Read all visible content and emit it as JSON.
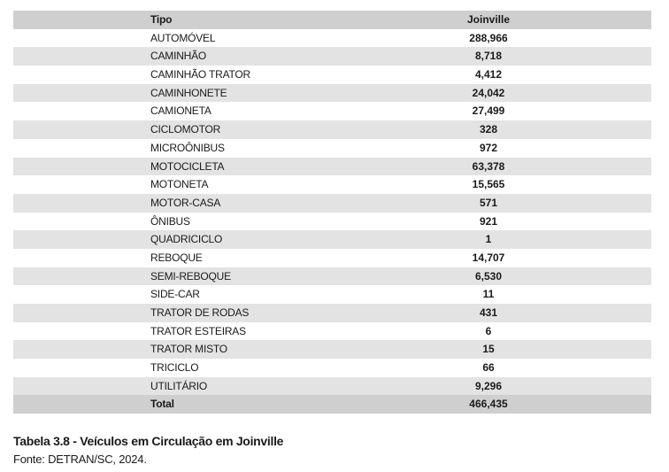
{
  "table": {
    "headers": {
      "tipo": "Tipo",
      "city": "Joinville"
    },
    "rows": [
      {
        "tipo": "AUTOMÓVEL",
        "value": "288,966"
      },
      {
        "tipo": "CAMINHÃO",
        "value": "8,718"
      },
      {
        "tipo": "CAMINHÃO TRATOR",
        "value": "4,412"
      },
      {
        "tipo": "CAMINHONETE",
        "value": "24,042"
      },
      {
        "tipo": "CAMIONETA",
        "value": "27,499"
      },
      {
        "tipo": "CICLOMOTOR",
        "value": "328"
      },
      {
        "tipo": "MICROÔNIBUS",
        "value": "972"
      },
      {
        "tipo": "MOTOCICLETA",
        "value": "63,378"
      },
      {
        "tipo": "MOTONETA",
        "value": "15,565"
      },
      {
        "tipo": "MOTOR-CASA",
        "value": "571"
      },
      {
        "tipo": "ÔNIBUS",
        "value": "921"
      },
      {
        "tipo": "QUADRICICLO",
        "value": "1"
      },
      {
        "tipo": "REBOQUE",
        "value": "14,707"
      },
      {
        "tipo": "SEMI-REBOQUE",
        "value": "6,530"
      },
      {
        "tipo": "SIDE-CAR",
        "value": "11"
      },
      {
        "tipo": "TRATOR DE RODAS",
        "value": "431"
      },
      {
        "tipo": "TRATOR ESTEIRAS",
        "value": "6"
      },
      {
        "tipo": "TRATOR MISTO",
        "value": "15"
      },
      {
        "tipo": "TRICICLO",
        "value": "66"
      },
      {
        "tipo": "UTILITÁRIO",
        "value": "9,296"
      }
    ],
    "total": {
      "tipo": "Total",
      "value": "466,435"
    }
  },
  "caption": "Tabela 3.8 - Veículos em Circulação em Joinville",
  "source": "Fonte: DETRAN/SC, 2024.",
  "colors": {
    "header_bg": "#cfcfcf",
    "stripe_bg": "#e3e3e3",
    "text": "#1a1a1a"
  }
}
